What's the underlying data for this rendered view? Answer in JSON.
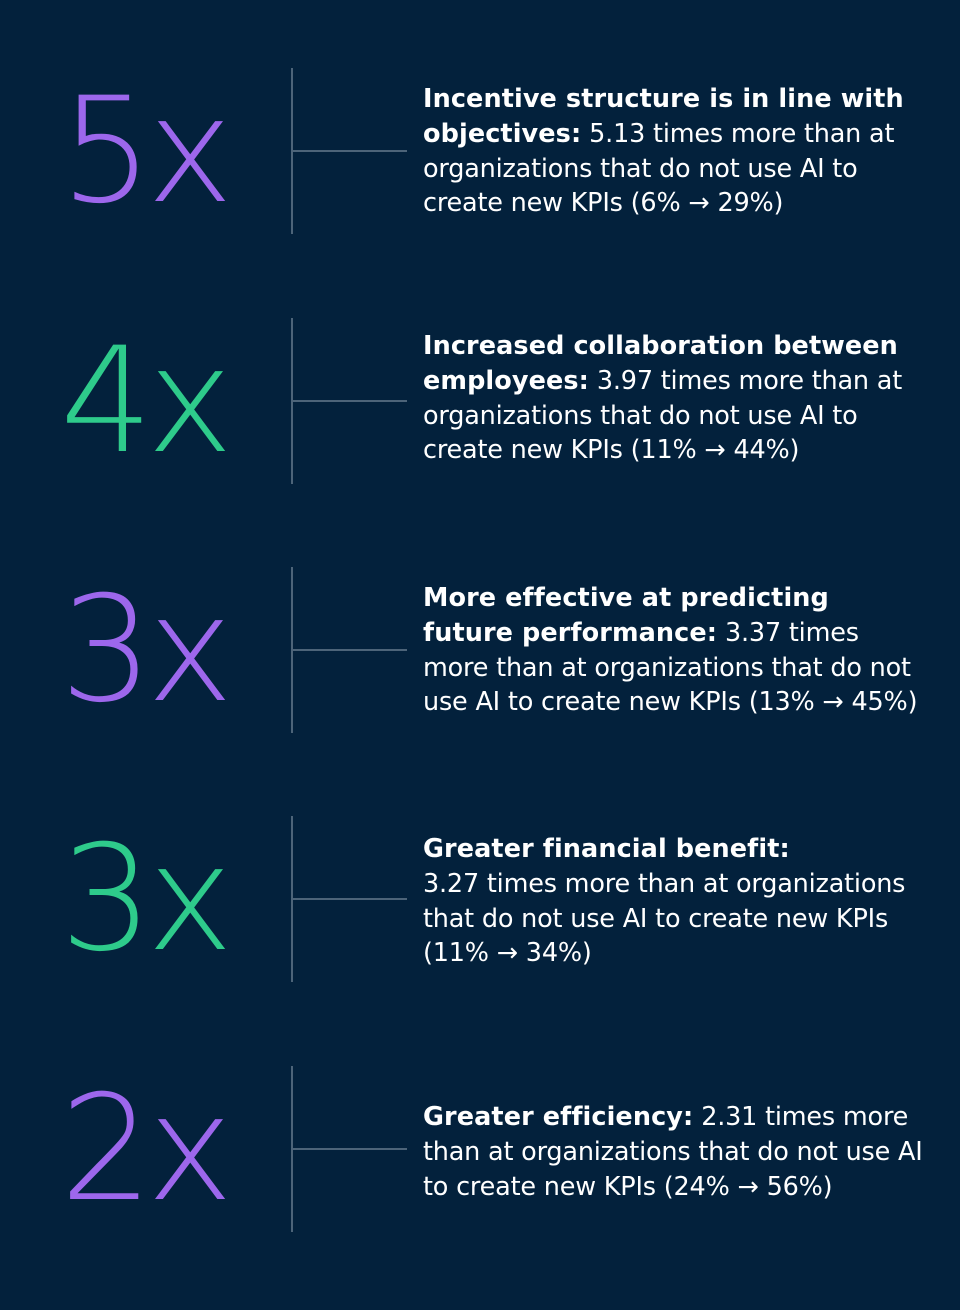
{
  "colors": {
    "background": "#03213c",
    "purple": "#9d67ec",
    "green": "#2ecb8b",
    "rule": "#4d6479",
    "text": "#ffffff"
  },
  "stats": [
    {
      "multiplier": "5x",
      "color": "purple",
      "lead": "Incentive structure is in line with objectives:",
      "detail": "5.13 times more than at organizations that do not use AI to create new KPIs (6% → 29%)"
    },
    {
      "multiplier": "4x",
      "color": "green",
      "lead": "Increased collaboration between employees:",
      "detail": "3.97 times more than at organizations that do not use AI to create new KPIs (11% → 44%)"
    },
    {
      "multiplier": "3x",
      "color": "purple",
      "lead": "More effective at predicting future performance:",
      "detail": "3.37 times more than at organizations that do not use AI to create new KPIs (13% → 45%)"
    },
    {
      "multiplier": "3x",
      "color": "green",
      "lead": "Greater financial benefit:",
      "detail": "3.27 times more than at organizations that do not use AI to create new KPIs (11% → 34%)"
    },
    {
      "multiplier": "2x",
      "color": "purple",
      "lead": "Greater efficiency:",
      "detail": "2.31 times more than at organizations that do not use AI to create new KPIs (24% → 56%)"
    }
  ]
}
